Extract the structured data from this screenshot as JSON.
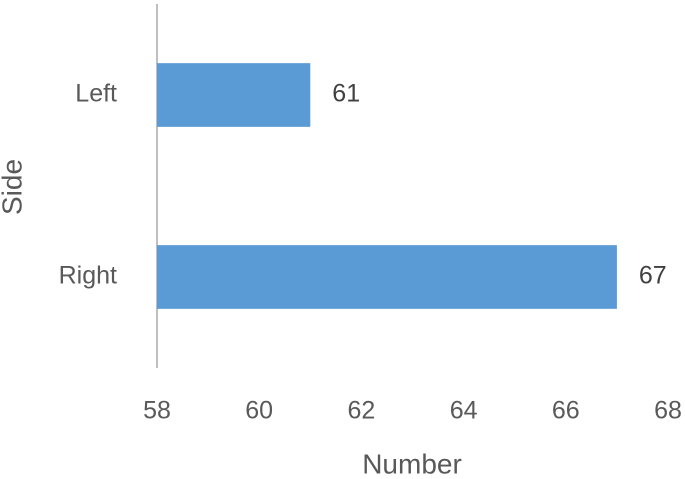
{
  "chart_data": {
    "type": "bar",
    "orientation": "horizontal",
    "categories": [
      "Left",
      "Right"
    ],
    "values": [
      61,
      67
    ],
    "color": "#5b9bd5",
    "xlabel": "Number",
    "ylabel": "Side",
    "xlim": [
      58,
      68
    ],
    "xticks": [
      58,
      60,
      62,
      64,
      66,
      68
    ],
    "grid": false
  }
}
